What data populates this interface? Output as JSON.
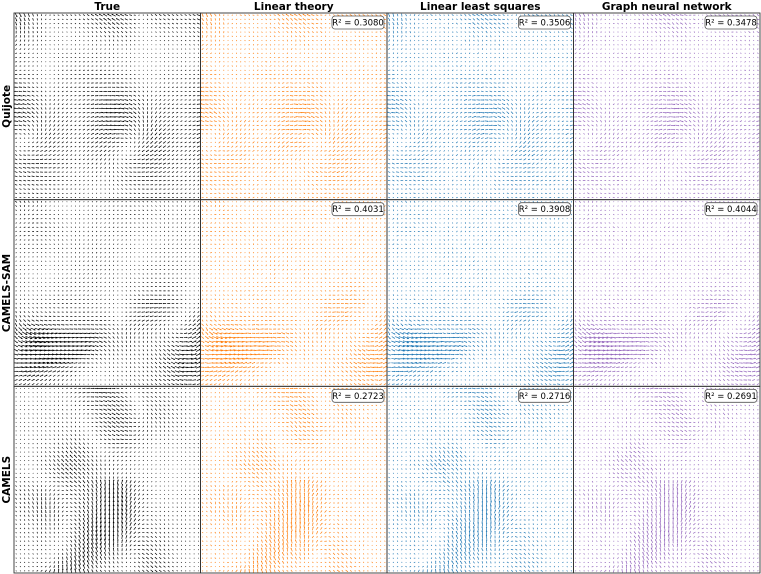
{
  "chart_data": {
    "type": "quiver-grid",
    "columns": [
      {
        "key": "true",
        "title": "True",
        "color": "#000000"
      },
      {
        "key": "linear_theory",
        "title": "Linear theory",
        "color": "#ff7f0e"
      },
      {
        "key": "linear_least_squares",
        "title": "Linear least squares",
        "color": "#1f77b4"
      },
      {
        "key": "graph_neural_network",
        "title": "Graph neural network",
        "color": "#9467bd"
      }
    ],
    "rows": [
      {
        "key": "quijote",
        "title": "Quijote"
      },
      {
        "key": "camels_sam",
        "title": "CAMELS-SAM"
      },
      {
        "key": "camels",
        "title": "CAMELS"
      }
    ],
    "r2_label": "R² = ",
    "r2": [
      [
        null,
        "0.3080",
        "0.3506",
        "0.3478"
      ],
      [
        null,
        "0.4031",
        "0.3908",
        "0.4044"
      ],
      [
        null,
        "0.2723",
        "0.2716",
        "0.2691"
      ]
    ]
  }
}
